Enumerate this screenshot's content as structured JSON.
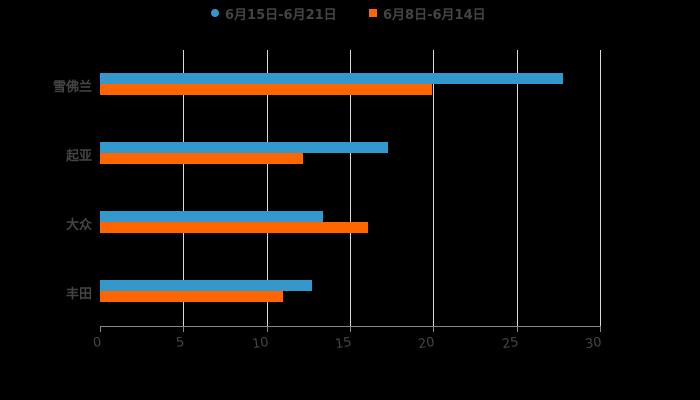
{
  "chart_data": {
    "type": "bar",
    "orientation": "horizontal",
    "title": "",
    "categories": [
      "雪佛兰",
      "起亚",
      "大众",
      "丰田"
    ],
    "series": [
      {
        "name": "6月15日-6月21日",
        "color": "#3399cc",
        "values": [
          27.8,
          17.3,
          13.4,
          12.7
        ]
      },
      {
        "name": "6月8日-6月14日",
        "color": "#ff6600",
        "values": [
          19.9,
          12.2,
          16.1,
          11.0
        ]
      }
    ],
    "xlabel": "",
    "ylabel": "",
    "xlim": [
      0,
      30
    ],
    "x_ticks": [
      "0",
      "5",
      "10",
      "15",
      "20",
      "25",
      "30"
    ],
    "grid": true,
    "legend_position": "top"
  },
  "legend": [
    {
      "label": "6月15日-6月21日",
      "color": "#3399cc",
      "marker": "circle"
    },
    {
      "label": "6月8日-6月14日",
      "color": "#ff6600",
      "marker": "square"
    }
  ]
}
